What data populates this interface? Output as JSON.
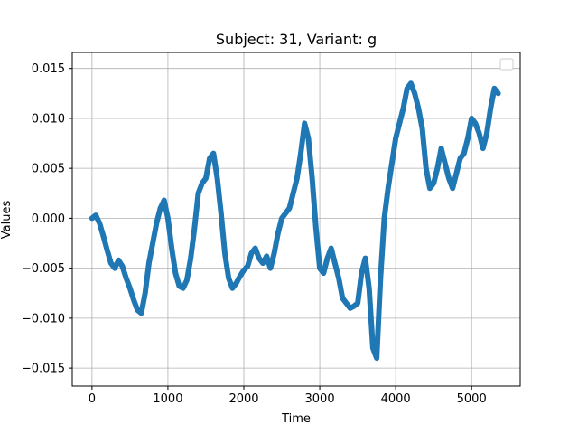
{
  "chart_data": {
    "type": "line",
    "title": "Subject: 31, Variant: g",
    "xlabel": "Time",
    "ylabel": "Values",
    "xlim": [
      -260,
      5640
    ],
    "ylim": [
      -0.0168,
      0.0166
    ],
    "xticks": [
      0,
      1000,
      2000,
      3000,
      4000,
      5000
    ],
    "xtick_labels": [
      "0",
      "1000",
      "2000",
      "3000",
      "4000",
      "5000"
    ],
    "yticks": [
      -0.015,
      -0.01,
      -0.005,
      0.0,
      0.005,
      0.01,
      0.015
    ],
    "ytick_labels": [
      "−0.015",
      "−0.010",
      "−0.005",
      "0.000",
      "0.005",
      "0.010",
      "0.015"
    ],
    "grid": true,
    "legend": "top-right",
    "series_color": "#1f77b4",
    "series": [
      {
        "x": [
          0,
          50,
          100,
          150,
          200,
          250,
          300,
          350,
          400,
          450,
          500,
          550,
          600,
          650,
          700,
          750,
          800,
          850,
          900,
          950,
          1000,
          1050,
          1100,
          1150,
          1200,
          1250,
          1300,
          1350,
          1400,
          1450,
          1500,
          1550,
          1600,
          1650,
          1700,
          1750,
          1800,
          1850,
          1900,
          1950,
          2000,
          2050,
          2100,
          2150,
          2200,
          2250,
          2300,
          2350,
          2400,
          2450,
          2500,
          2550,
          2600,
          2650,
          2700,
          2750,
          2800,
          2850,
          2900,
          2950,
          3000,
          3050,
          3100,
          3150,
          3200,
          3250,
          3300,
          3350,
          3400,
          3450,
          3500,
          3550,
          3600,
          3650,
          3700,
          3750,
          3800,
          3850,
          3900,
          3950,
          4000,
          4050,
          4100,
          4150,
          4200,
          4250,
          4300,
          4350,
          4400,
          4450,
          4500,
          4550,
          4600,
          4650,
          4700,
          4750,
          4800,
          4850,
          4900,
          4950,
          5000,
          5050,
          5100,
          5150,
          5200,
          5250,
          5300,
          5350
        ],
        "y": [
          0.0,
          0.0003,
          -0.0005,
          -0.0018,
          -0.0032,
          -0.0045,
          -0.005,
          -0.0042,
          -0.0048,
          -0.006,
          -0.007,
          -0.0082,
          -0.0092,
          -0.0095,
          -0.0075,
          -0.0045,
          -0.0025,
          -0.0005,
          0.001,
          0.0018,
          0.0,
          -0.003,
          -0.0055,
          -0.0068,
          -0.007,
          -0.0062,
          -0.004,
          -0.001,
          0.0025,
          0.0035,
          0.004,
          0.006,
          0.0065,
          0.004,
          0.0005,
          -0.0035,
          -0.006,
          -0.007,
          -0.0065,
          -0.0058,
          -0.0052,
          -0.0048,
          -0.0035,
          -0.003,
          -0.004,
          -0.0045,
          -0.0038,
          -0.005,
          -0.0035,
          -0.0015,
          0.0,
          0.0005,
          0.001,
          0.0025,
          0.004,
          0.0065,
          0.0095,
          0.008,
          0.004,
          -0.001,
          -0.005,
          -0.0055,
          -0.004,
          -0.003,
          -0.0045,
          -0.006,
          -0.008,
          -0.0085,
          -0.009,
          -0.0088,
          -0.0085,
          -0.0055,
          -0.004,
          -0.007,
          -0.013,
          -0.014,
          -0.006,
          0.0,
          0.003,
          0.0055,
          0.008,
          0.0095,
          0.011,
          0.013,
          0.0135,
          0.0125,
          0.011,
          0.009,
          0.005,
          0.003,
          0.0035,
          0.005,
          0.007,
          0.0055,
          0.004,
          0.003,
          0.0045,
          0.006,
          0.0065,
          0.008,
          0.01,
          0.0095,
          0.0085,
          0.007,
          0.0085,
          0.011,
          0.013,
          0.0125
        ]
      }
    ]
  }
}
